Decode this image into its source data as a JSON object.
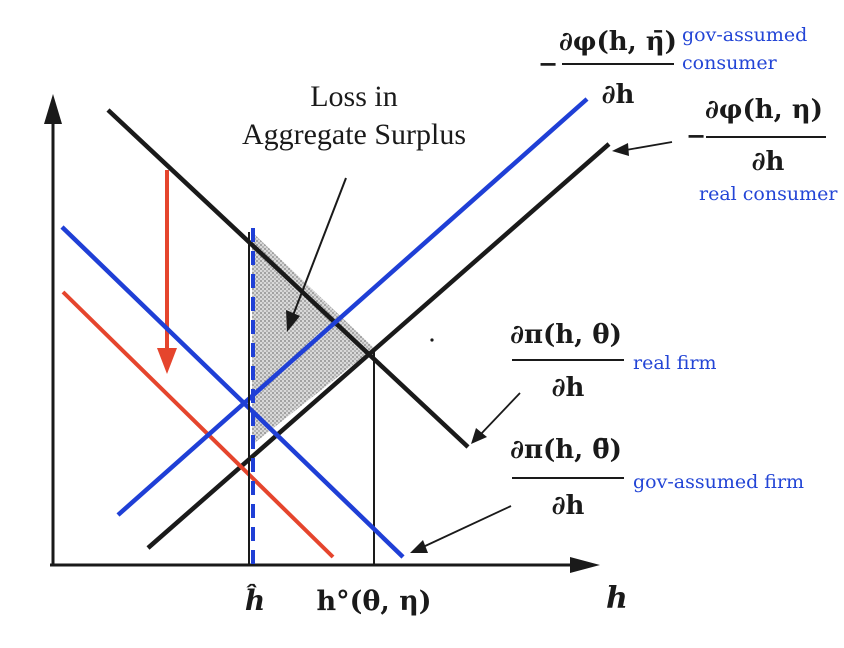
{
  "diagram": {
    "annotation": {
      "line1": "Loss in",
      "line2": "Aggregate Surplus"
    },
    "x_axis_label": "h",
    "ticks": {
      "h_hat": "ĥ",
      "h_opt": "h°(θ, η)"
    },
    "fractions": {
      "gov_consumer": {
        "prefix": "−",
        "numerator": "∂φ(h, η̄)",
        "denominator": "∂h"
      },
      "real_consumer": {
        "prefix": "−",
        "numerator": "∂φ(h, η)",
        "denominator": "∂h"
      },
      "real_firm": {
        "prefix": "",
        "numerator": "∂π(h, θ)",
        "denominator": "∂h"
      },
      "gov_firm": {
        "prefix": "",
        "numerator": "∂π(h, θ̄)",
        "denominator": "∂h"
      }
    },
    "labels": {
      "gov_consumer_1": "gov-assumed",
      "gov_consumer_2": "consumer",
      "real_consumer": "real consumer",
      "real_firm": "real firm",
      "gov_firm": "gov-assumed firm"
    },
    "colors": {
      "ink": "#1a1a1a",
      "blue": "#1f3fd6",
      "red": "#e5452d",
      "shade": "#8f8f8f",
      "label_blue": "#2345d6"
    }
  }
}
